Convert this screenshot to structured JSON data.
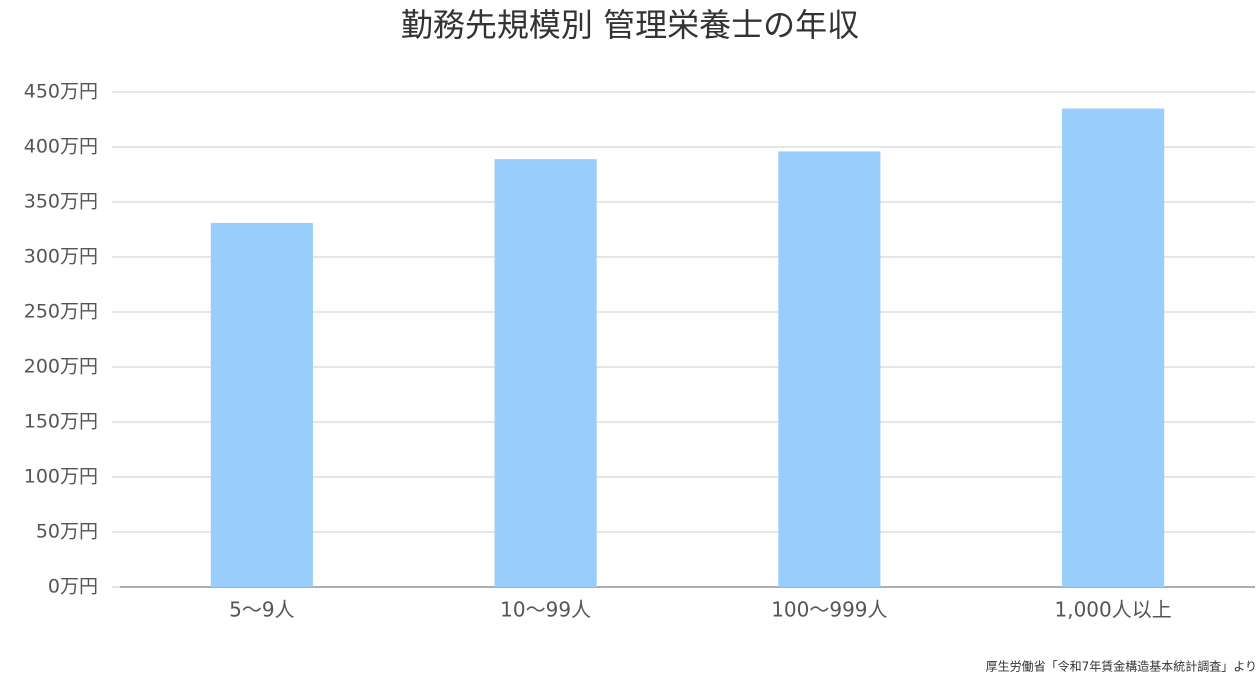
{
  "chart_data": {
    "type": "bar",
    "title": "勤務先規模別 管理栄養士の年収",
    "categories": [
      "5〜9人",
      "10〜99人",
      "100〜999人",
      "1,000人以上"
    ],
    "values": [
      331,
      389,
      396,
      435
    ],
    "color": "#99cefc",
    "ylim": [
      0,
      450
    ],
    "yticks": [
      {
        "value": 0,
        "label": "0万円"
      },
      {
        "value": 50,
        "label": "50万円"
      },
      {
        "value": 100,
        "label": "100万円"
      },
      {
        "value": 150,
        "label": "150万円"
      },
      {
        "value": 200,
        "label": "200万円"
      },
      {
        "value": 250,
        "label": "250万円"
      },
      {
        "value": 300,
        "label": "300万円"
      },
      {
        "value": 350,
        "label": "350万円"
      },
      {
        "value": 400,
        "label": "400万円"
      },
      {
        "value": 450,
        "label": "450万円"
      }
    ],
    "grid": true,
    "source": "厚生労働省「令和7年賃金構造基本統計調査」より"
  }
}
